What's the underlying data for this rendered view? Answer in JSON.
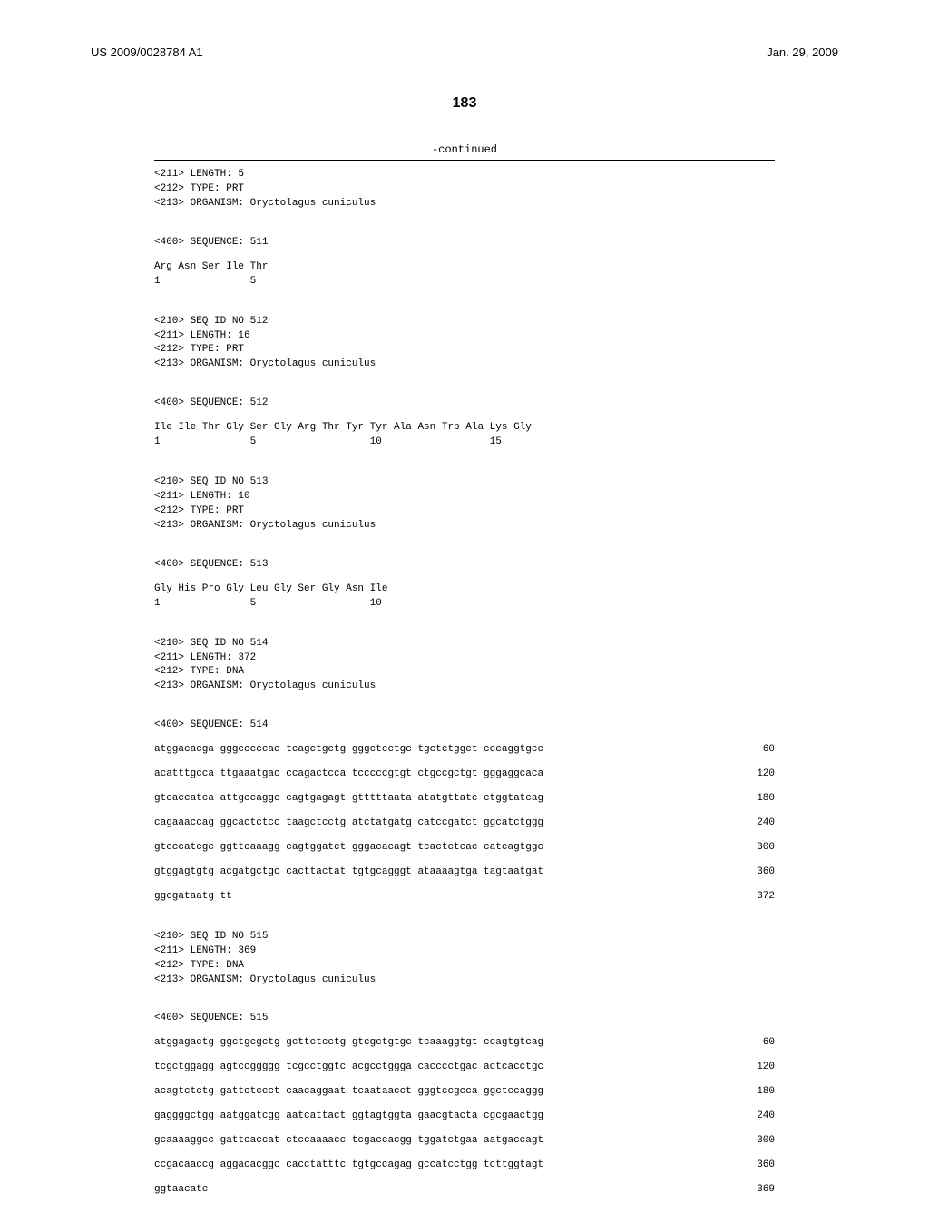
{
  "header": {
    "left": "US 2009/0028784 A1",
    "right": "Jan. 29, 2009"
  },
  "page_number": "183",
  "continued_label": "-continued",
  "blocks": [
    {
      "meta": [
        "<211> LENGTH: 5",
        "<212> TYPE: PRT",
        "<213> ORGANISM: Oryctolagus cuniculus"
      ],
      "seq_label": "<400> SEQUENCE: 511",
      "aa_lines": [
        "Arg Asn Ser Ile Thr",
        "1               5"
      ]
    },
    {
      "meta": [
        "<210> SEQ ID NO 512",
        "<211> LENGTH: 16",
        "<212> TYPE: PRT",
        "<213> ORGANISM: Oryctolagus cuniculus"
      ],
      "seq_label": "<400> SEQUENCE: 512",
      "aa_lines": [
        "Ile Ile Thr Gly Ser Gly Arg Thr Tyr Tyr Ala Asn Trp Ala Lys Gly",
        "1               5                   10                  15"
      ]
    },
    {
      "meta": [
        "<210> SEQ ID NO 513",
        "<211> LENGTH: 10",
        "<212> TYPE: PRT",
        "<213> ORGANISM: Oryctolagus cuniculus"
      ],
      "seq_label": "<400> SEQUENCE: 513",
      "aa_lines": [
        "Gly His Pro Gly Leu Gly Ser Gly Asn Ile",
        "1               5                   10"
      ]
    },
    {
      "meta": [
        "<210> SEQ ID NO 514",
        "<211> LENGTH: 372",
        "<212> TYPE: DNA",
        "<213> ORGANISM: Oryctolagus cuniculus"
      ],
      "seq_label": "<400> SEQUENCE: 514",
      "dna_lines": [
        {
          "seq": "atggacacga gggcccccac tcagctgctg gggctcctgc tgctctggct cccaggtgcc",
          "num": "60"
        },
        {
          "seq": "acatttgcca ttgaaatgac ccagactcca tcccccgtgt ctgccgctgt gggaggcaca",
          "num": "120"
        },
        {
          "seq": "gtcaccatca attgccaggc cagtgagagt gtttttaata atatgttatc ctggtatcag",
          "num": "180"
        },
        {
          "seq": "cagaaaccag ggcactctcc taagctcctg atctatgatg catccgatct ggcatctggg",
          "num": "240"
        },
        {
          "seq": "gtcccatcgc ggttcaaagg cagtggatct gggacacagt tcactctcac catcagtggc",
          "num": "300"
        },
        {
          "seq": "gtggagtgtg acgatgctgc cacttactat tgtgcagggt ataaaagtga tagtaatgat",
          "num": "360"
        },
        {
          "seq": "ggcgataatg tt",
          "num": "372"
        }
      ]
    },
    {
      "meta": [
        "<210> SEQ ID NO 515",
        "<211> LENGTH: 369",
        "<212> TYPE: DNA",
        "<213> ORGANISM: Oryctolagus cuniculus"
      ],
      "seq_label": "<400> SEQUENCE: 515",
      "dna_lines": [
        {
          "seq": "atggagactg ggctgcgctg gcttctcctg gtcgctgtgc tcaaaggtgt ccagtgtcag",
          "num": "60"
        },
        {
          "seq": "tcgctggagg agtccggggg tcgcctggtc acgcctggga cacccctgac actcacctgc",
          "num": "120"
        },
        {
          "seq": "acagtctctg gattctccct caacaggaat tcaataacct gggtccgcca ggctccaggg",
          "num": "180"
        },
        {
          "seq": "gaggggctgg aatggatcgg aatcattact ggtagtggta gaacgtacta cgcgaactgg",
          "num": "240"
        },
        {
          "seq": "gcaaaaggcc gattcaccat ctccaaaacc tcgaccacgg tggatctgaa aatgaccagt",
          "num": "300"
        },
        {
          "seq": "ccgacaaccg aggacacggc cacctatttc tgtgccagag gccatcctgg tcttggtagt",
          "num": "360"
        },
        {
          "seq": "ggtaacatc",
          "num": "369"
        }
      ]
    }
  ]
}
